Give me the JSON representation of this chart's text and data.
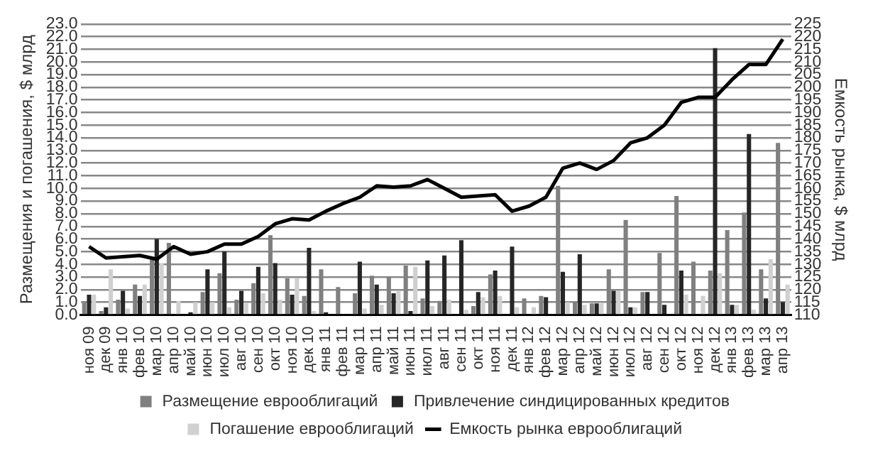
{
  "chart_data": {
    "type": "bar",
    "ylabel": "Размещения и погашения, $ млрд",
    "y2label": "Емкость рынка, $ млрд",
    "categories": [
      "ноя 09",
      "дек 09",
      "янв 10",
      "фев 10",
      "мар 10",
      "апр 10",
      "май 10",
      "июн 10",
      "июл 10",
      "авг 10",
      "сен 10",
      "окт 10",
      "ноя 10",
      "дек 10",
      "янв 11",
      "фев 11",
      "мар 11",
      "апр 11",
      "май 11",
      "июн 11",
      "июл 11",
      "авг 11",
      "сен 11",
      "окт 11",
      "ноя 11",
      "дек 11",
      "янв 12",
      "фев 12",
      "мар 12",
      "апр 12",
      "май 12",
      "июн 12",
      "июл 12",
      "авг 12",
      "сен 12",
      "окт 12",
      "ноя 12",
      "дек 12",
      "янв 13",
      "фев 13",
      "мар 13",
      "апр 13"
    ],
    "series": [
      {
        "name": "Размещение еврооблигаций",
        "color": "#808080",
        "values": [
          1.0,
          0.3,
          1.2,
          2.4,
          4.5,
          5.7,
          null,
          1.8,
          3.3,
          1.2,
          2.5,
          6.3,
          2.9,
          1.5,
          3.6,
          2.2,
          1.7,
          3.1,
          3.0,
          3.9,
          1.3,
          1.1,
          0,
          0.7,
          3.2,
          0,
          1.3,
          1.5,
          10.2,
          1.0,
          0.9,
          3.6,
          7.5,
          1.8,
          4.9,
          9.4,
          4.2,
          3.5,
          6.7,
          8.1,
          3.6,
          13.6
        ]
      },
      {
        "name": "Привлечение синдицированных кредитов",
        "color": "#262626",
        "values": [
          1.6,
          0.6,
          1.9,
          1.5,
          6.0,
          0,
          0.2,
          3.6,
          5.0,
          1.9,
          3.8,
          4.1,
          1.6,
          5.3,
          0.2,
          0,
          4.2,
          2.4,
          1.7,
          0.3,
          4.3,
          4.7,
          5.9,
          1.8,
          3.5,
          5.4,
          0,
          1.4,
          3.4,
          4.8,
          0.9,
          1.9,
          0.6,
          1.8,
          0.8,
          3.5,
          0,
          21.1,
          0.8,
          14.3,
          1.3,
          1.0
        ]
      },
      {
        "name": "Погашение еврооблигаций",
        "color": "#d0d0d0",
        "values": [
          1.6,
          3.6,
          0.5,
          2.4,
          4.1,
          1.1,
          1.0,
          1.0,
          0.6,
          0.9,
          1.7,
          1.2,
          2.9,
          0.3,
          0,
          0,
          0.5,
          0.8,
          1.9,
          3.8,
          0.7,
          1.2,
          0.4,
          1.4,
          1.5,
          0.6,
          0.6,
          0,
          1.0,
          0.8,
          0.9,
          1.9,
          0.6,
          null,
          0,
          1.6,
          1.5,
          3.3,
          0.8,
          0.4,
          4.4,
          2.4
        ]
      },
      {
        "name": "Емкость рынка еврооблигаций",
        "type": "line",
        "axis": "y2",
        "color": "#000000",
        "values": [
          137,
          132.5,
          133,
          133.5,
          132,
          137,
          134,
          135,
          138,
          138,
          141,
          146,
          148,
          147.5,
          151,
          154,
          156.5,
          161,
          160.5,
          161,
          163.5,
          160,
          156.5,
          157,
          157.5,
          151,
          153,
          156.5,
          168,
          170,
          167.5,
          171,
          178,
          180,
          185,
          194,
          196,
          196,
          203,
          209,
          209,
          219
        ]
      }
    ],
    "ylim": [
      0,
      23
    ],
    "yticks": [
      {
        "value": 0,
        "label": "0.0"
      },
      {
        "value": 1,
        "label": "1.0"
      },
      {
        "value": 2,
        "label": "2.0"
      },
      {
        "value": 3,
        "label": "3.0"
      },
      {
        "value": 4,
        "label": "4.0"
      },
      {
        "value": 5,
        "label": "5.0"
      },
      {
        "value": 6,
        "label": "6.0"
      },
      {
        "value": 7,
        "label": "7.0"
      },
      {
        "value": 8,
        "label": "8.0"
      },
      {
        "value": 9,
        "label": "9.0"
      },
      {
        "value": 10,
        "label": "10.0"
      },
      {
        "value": 11,
        "label": "11.0"
      },
      {
        "value": 12,
        "label": "12.0"
      },
      {
        "value": 13,
        "label": "13.0"
      },
      {
        "value": 14,
        "label": "14.0"
      },
      {
        "value": 15,
        "label": "15.0"
      },
      {
        "value": 16,
        "label": "16.0"
      },
      {
        "value": 17,
        "label": "17.0"
      },
      {
        "value": 18,
        "label": "18.0"
      },
      {
        "value": 19,
        "label": "19.0"
      },
      {
        "value": 20,
        "label": "20.0"
      },
      {
        "value": 21,
        "label": "21.0"
      },
      {
        "value": 22,
        "label": "22.0"
      },
      {
        "value": 23,
        "label": "23.0"
      }
    ],
    "y2lim": [
      110,
      225
    ],
    "y2ticks": [
      110,
      115,
      120,
      125,
      130,
      135,
      140,
      145,
      150,
      155,
      160,
      165,
      170,
      175,
      180,
      185,
      190,
      195,
      200,
      205,
      210,
      215,
      220,
      225
    ],
    "grid": "y",
    "legend": "bottom",
    "marker": "none",
    "line_style": "solid"
  }
}
